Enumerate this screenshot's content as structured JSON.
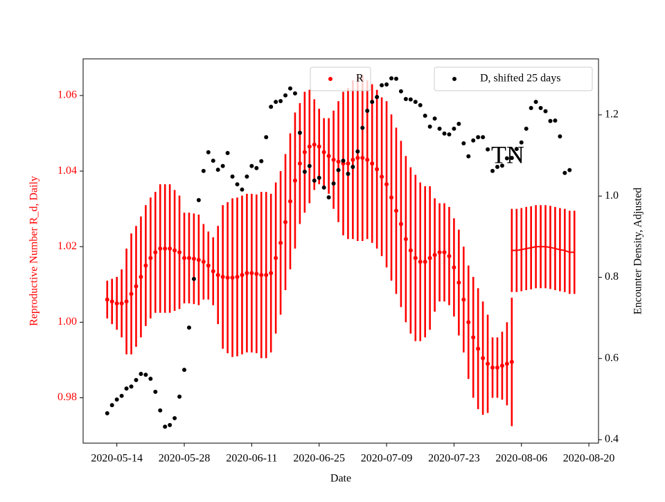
{
  "chart_data": {
    "type": "errorbar-scatter",
    "xlabel": "Date",
    "ylabel": "Reproductive Number R_d, Daily",
    "y2label": "Encounter Density, Adjusted",
    "y_axis_color": "#ff0000",
    "annotation": "TN",
    "xlim": [
      "2020-05-07",
      "2020-08-22"
    ],
    "xticks": [
      "2020-05-14",
      "2020-05-28",
      "2020-06-11",
      "2020-06-25",
      "2020-07-09",
      "2020-07-23",
      "2020-08-06",
      "2020-08-20"
    ],
    "ylim": [
      0.968,
      1.0697
    ],
    "yticks": [
      0.98,
      {
        "value": 1,
        "label": "1.00"
      },
      1.02,
      1.04,
      1.06
    ],
    "y2lim": [
      0.3915,
      1.338
    ],
    "y2ticks": [
      0.4,
      0.6,
      0.8,
      {
        "value": 1,
        "label": "1.0"
      },
      1.2
    ],
    "x": [
      "2020-05-12",
      "2020-05-13",
      "2020-05-14",
      "2020-05-15",
      "2020-05-16",
      "2020-05-17",
      "2020-05-18",
      "2020-05-19",
      "2020-05-20",
      "2020-05-21",
      "2020-05-22",
      "2020-05-23",
      "2020-05-24",
      "2020-05-25",
      "2020-05-26",
      "2020-05-27",
      "2020-05-28",
      "2020-05-29",
      "2020-05-30",
      "2020-05-31",
      "2020-06-01",
      "2020-06-02",
      "2020-06-03",
      "2020-06-04",
      "2020-06-05",
      "2020-06-06",
      "2020-06-07",
      "2020-06-08",
      "2020-06-09",
      "2020-06-10",
      "2020-06-11",
      "2020-06-12",
      "2020-06-13",
      "2020-06-14",
      "2020-06-15",
      "2020-06-16",
      "2020-06-17",
      "2020-06-18",
      "2020-06-19",
      "2020-06-20",
      "2020-06-21",
      "2020-06-22",
      "2020-06-23",
      "2020-06-24",
      "2020-06-25",
      "2020-06-26",
      "2020-06-27",
      "2020-06-28",
      "2020-06-29",
      "2020-06-30",
      "2020-07-01",
      "2020-07-02",
      "2020-07-03",
      "2020-07-04",
      "2020-07-05",
      "2020-07-06",
      "2020-07-07",
      "2020-07-08",
      "2020-07-09",
      "2020-07-10",
      "2020-07-11",
      "2020-07-12",
      "2020-07-13",
      "2020-07-14",
      "2020-07-15",
      "2020-07-16",
      "2020-07-17",
      "2020-07-18",
      "2020-07-19",
      "2020-07-20",
      "2020-07-21",
      "2020-07-22",
      "2020-07-23",
      "2020-07-24",
      "2020-07-25",
      "2020-07-26",
      "2020-07-27",
      "2020-07-28",
      "2020-07-29",
      "2020-07-30",
      "2020-07-31",
      "2020-08-01",
      "2020-08-02",
      "2020-08-03",
      "2020-08-04",
      "2020-08-05",
      "2020-08-06",
      "2020-08-07",
      "2020-08-08",
      "2020-08-09",
      "2020-08-10",
      "2020-08-11",
      "2020-08-12",
      "2020-08-13",
      "2020-08-14",
      "2020-08-15",
      "2020-08-16",
      "2020-08-17"
    ],
    "series": [
      {
        "name": "R",
        "color": "#ff0000",
        "style": "dots",
        "values": [
          1.006,
          1.0055,
          1.005,
          1.005,
          1.0055,
          1.0075,
          1.0095,
          1.012,
          1.015,
          1.017,
          1.0185,
          1.0195,
          1.0195,
          1.0195,
          1.019,
          1.0185,
          1.017,
          1.017,
          1.0168,
          1.0165,
          1.016,
          1.015,
          1.0135,
          1.0125,
          1.012,
          1.0118,
          1.0118,
          1.012,
          1.0125,
          1.013,
          1.013,
          1.0128,
          1.0125,
          1.0125,
          1.013,
          1.017,
          1.021,
          1.0265,
          1.032,
          1.0375,
          1.042,
          1.045,
          1.0465,
          1.047,
          1.0465,
          1.045,
          1.044,
          1.043,
          1.0425,
          1.042,
          1.042,
          1.043,
          1.0435,
          1.0435,
          1.043,
          1.042,
          1.0405,
          1.0385,
          1.0365,
          1.033,
          1.0295,
          1.026,
          1.022,
          1.019,
          1.017,
          1.016,
          1.016,
          1.017,
          1.0178,
          1.0185,
          1.0185,
          1.0175,
          1.0145,
          1.0105,
          1.006,
          1.0,
          0.996,
          0.993,
          0.9905,
          0.989,
          0.988,
          0.988,
          0.9885,
          0.989,
          0.9895,
          null,
          null,
          null,
          null,
          null,
          null,
          null,
          null,
          null,
          null,
          null,
          null,
          null
        ],
        "errors": [
          0.005,
          0.006,
          0.007,
          0.009,
          0.014,
          0.016,
          0.016,
          0.016,
          0.016,
          0.016,
          0.016,
          0.017,
          0.017,
          0.017,
          0.016,
          0.015,
          0.012,
          0.012,
          0.012,
          0.012,
          0.01,
          0.009,
          0.009,
          0.013,
          0.019,
          0.02,
          0.021,
          0.021,
          0.021,
          0.021,
          0.021,
          0.021,
          0.022,
          0.022,
          0.021,
          0.02,
          0.019,
          0.018,
          0.018,
          0.018,
          0.016,
          0.016,
          0.015,
          0.012,
          0.01,
          0.009,
          0.01,
          0.013,
          0.016,
          0.019,
          0.02,
          0.021,
          0.022,
          0.022,
          0.021,
          0.021,
          0.021,
          0.021,
          0.022,
          0.022,
          0.022,
          0.022,
          0.022,
          0.022,
          0.022,
          0.021,
          0.02,
          0.019,
          0.015,
          0.013,
          0.013,
          0.013,
          0.013,
          0.014,
          0.014,
          0.015,
          0.016,
          0.016,
          0.015,
          0.013,
          0.008,
          0.008,
          0.009,
          0.011,
          0.017,
          null,
          null,
          null,
          null,
          null,
          null,
          null,
          null,
          null,
          null,
          null,
          null,
          null
        ]
      },
      {
        "color": "#ff0000",
        "style": "line",
        "x": [
          "2020-08-04",
          "2020-08-05",
          "2020-08-06",
          "2020-08-07",
          "2020-08-08",
          "2020-08-09",
          "2020-08-10",
          "2020-08-11",
          "2020-08-12",
          "2020-08-13",
          "2020-08-14",
          "2020-08-15",
          "2020-08-16",
          "2020-08-17"
        ],
        "values": [
          1.019,
          1.019,
          1.0192,
          1.0195,
          1.0197,
          1.02,
          1.02,
          1.02,
          1.0198,
          1.0195,
          1.0192,
          1.019,
          1.0185,
          1.0185
        ],
        "errors": [
          0.011,
          0.011,
          0.011,
          0.011,
          0.011,
          0.011,
          0.011,
          0.011,
          0.011,
          0.011,
          0.011,
          0.011,
          0.011,
          0.011
        ]
      },
      {
        "name": "D, shifted 25 days",
        "color": "#000000",
        "style": "dots",
        "axis": "y2",
        "values": [
          0.465,
          0.485,
          0.499,
          0.508,
          0.526,
          0.531,
          0.547,
          0.562,
          0.56,
          0.55,
          0.518,
          0.472,
          0.432,
          0.436,
          0.453,
          0.506,
          0.572,
          0.676,
          0.796,
          0.99,
          1.062,
          1.108,
          1.087,
          1.065,
          1.074,
          1.106,
          1.048,
          1.029,
          1.016,
          1.048,
          1.074,
          1.069,
          1.086,
          1.145,
          1.22,
          1.232,
          1.234,
          1.248,
          1.265,
          1.253,
          1.156,
          1.06,
          1.074,
          1.038,
          1.045,
          1.021,
          0.997,
          1.031,
          1.064,
          1.087,
          1.055,
          1.072,
          1.11,
          1.168,
          1.21,
          1.232,
          1.244,
          1.273,
          1.275,
          1.29,
          1.289,
          1.258,
          1.239,
          1.238,
          1.232,
          1.224,
          1.198,
          1.171,
          1.191,
          1.166,
          1.154,
          1.152,
          1.166,
          1.178,
          1.13,
          1.098,
          1.137,
          1.145,
          1.145,
          1.115,
          1.062,
          1.072,
          1.075,
          1.093,
          1.094,
          1.116,
          1.132,
          1.166,
          1.217,
          1.232,
          1.217,
          1.209,
          1.185,
          1.186,
          1.147,
          1.057,
          1.064,
          null
        ]
      }
    ]
  }
}
